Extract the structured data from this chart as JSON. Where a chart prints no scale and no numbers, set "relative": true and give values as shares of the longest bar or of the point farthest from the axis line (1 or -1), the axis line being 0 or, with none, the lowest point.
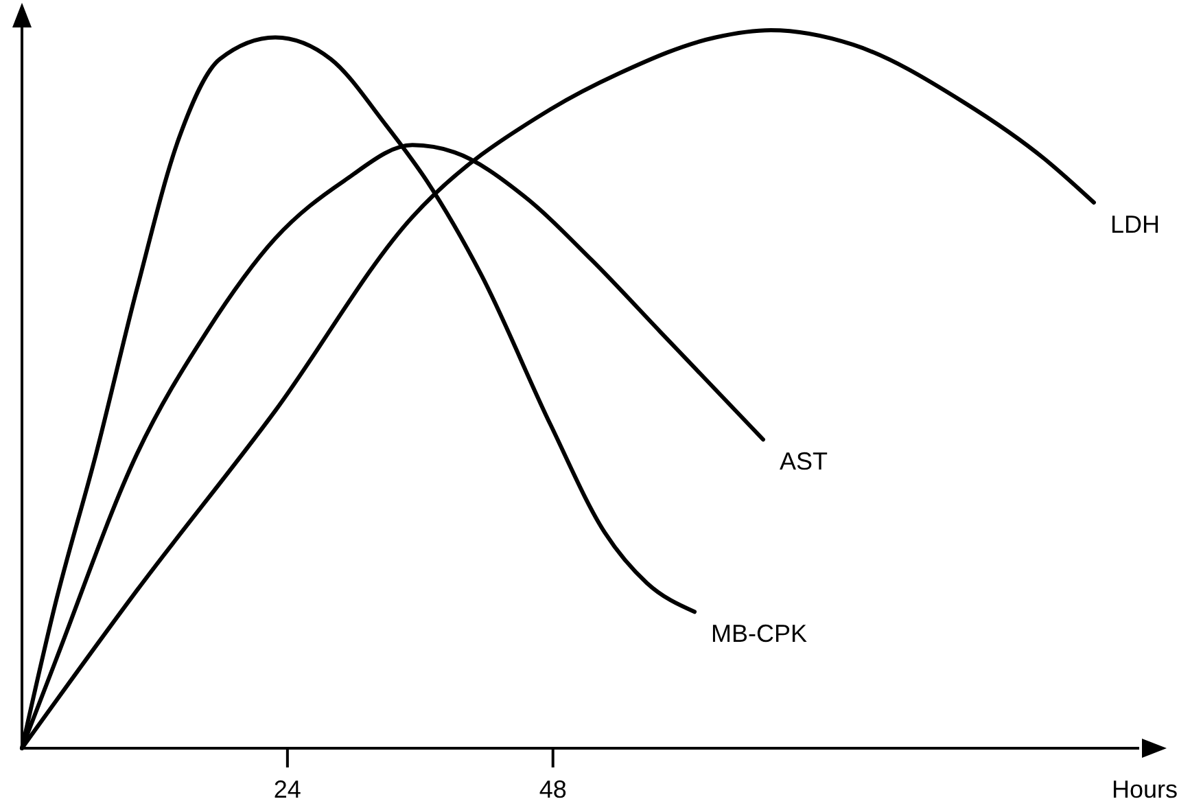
{
  "chart_data": {
    "type": "line",
    "xlabel": "Hours",
    "relative": true,
    "xlim": [
      0,
      101
    ],
    "xticks": [
      24,
      48
    ],
    "tick_labels": "x",
    "series": [
      {
        "name": "LDH",
        "color": "#000000",
        "x": [
          0,
          10.4,
          22.9,
          35.3,
          47.8,
          54.0,
          62.7,
          67.7,
          75.1,
          85.1,
          92.5,
          96.9
        ],
        "values": [
          0,
          0.22,
          0.47,
          0.74,
          0.89,
          0.94,
          0.99,
          1.0,
          0.98,
          0.9,
          0.82,
          0.76
        ]
      },
      {
        "name": "AST",
        "color": "#000000",
        "x": [
          0,
          3,
          10.4,
          16.7,
          22.9,
          29.1,
          35.3,
          39.1,
          45.3,
          51.5,
          57.7,
          67.0
        ],
        "values": [
          0,
          0.12,
          0.41,
          0.58,
          0.71,
          0.79,
          0.84,
          0.83,
          0.77,
          0.68,
          0.58,
          0.43
        ]
      },
      {
        "name": "MB-CPK",
        "color": "#000000",
        "x": [
          0,
          3,
          6.7,
          10.4,
          14.2,
          17.9,
          22.9,
          27.9,
          32.8,
          36.6,
          41.5,
          47.8,
          52.7,
          56.5,
          60.8
        ],
        "values": [
          0,
          0.2,
          0.41,
          0.64,
          0.85,
          0.96,
          0.99,
          0.96,
          0.87,
          0.79,
          0.66,
          0.45,
          0.3,
          0.23,
          0.19
        ]
      }
    ]
  }
}
